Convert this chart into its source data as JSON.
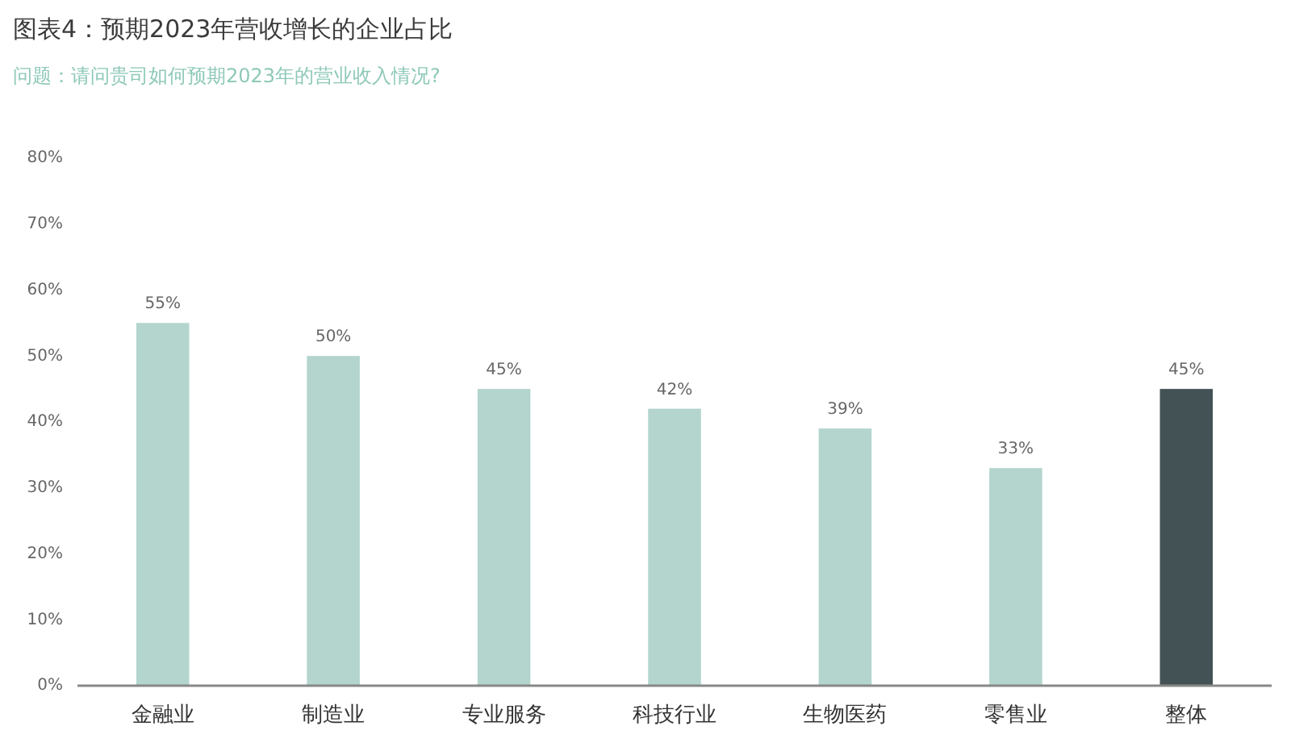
{
  "chart_data": {
    "type": "bar",
    "title": "图表4：预期2023年营收增长的企业占比",
    "subtitle": "问题：请问贵司如何预期2023年的营业收入情况?",
    "categories": [
      "金融业",
      "制造业",
      "专业服务",
      "科技行业",
      "生物医药",
      "零售业",
      "整体"
    ],
    "values": [
      55,
      50,
      45,
      42,
      39,
      33,
      45
    ],
    "colors": [
      "#b3d5cd",
      "#b3d5cd",
      "#b3d5cd",
      "#b3d5cd",
      "#b3d5cd",
      "#b3d5cd",
      "#435255"
    ],
    "value_labels": [
      "55%",
      "50%",
      "45%",
      "42%",
      "39%",
      "33%",
      "45%"
    ],
    "ylim": [
      0,
      80
    ],
    "yticks": [
      {
        "value": 0,
        "label": "0%"
      },
      {
        "value": 10,
        "label": "10%"
      },
      {
        "value": 20,
        "label": "20%"
      },
      {
        "value": 30,
        "label": "30%"
      },
      {
        "value": 40,
        "label": "40%"
      },
      {
        "value": 50,
        "label": "50%"
      },
      {
        "value": 60,
        "label": "60%"
      },
      {
        "value": 70,
        "label": "70%"
      },
      {
        "value": 80,
        "label": "80%"
      }
    ]
  }
}
